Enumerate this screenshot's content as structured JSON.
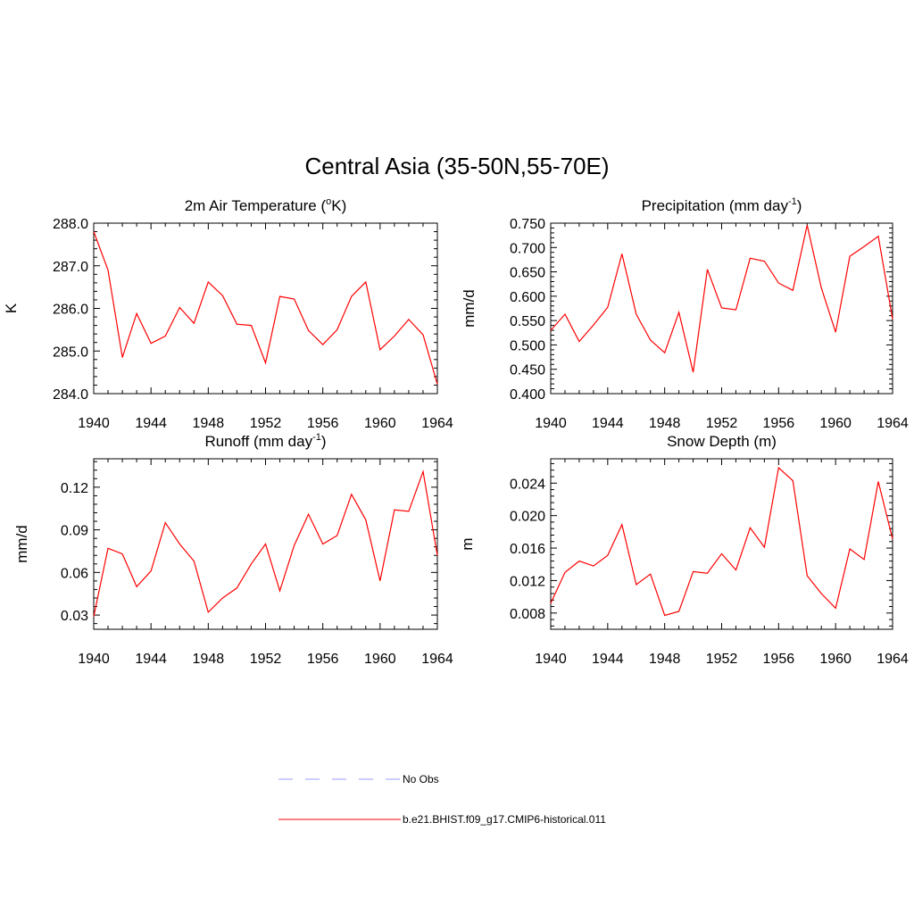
{
  "title": "Central Asia (35-50N,55-70E)",
  "legend": [
    {
      "label": "No Obs",
      "color": "#9999ff",
      "dash": "dashed"
    },
    {
      "label": "b.e21.BHIST.f09_g17.CMIP6-historical.011",
      "color": "#ff0000",
      "dash": "solid"
    }
  ],
  "chart_data": [
    {
      "type": "line",
      "title_main": "2m Air Temperature (",
      "title_sup": "o",
      "title_after": "K)",
      "ylabel": "K",
      "ylim": [
        284.0,
        288.0
      ],
      "yticks": [
        284.0,
        285.0,
        286.0,
        287.0,
        288.0
      ],
      "ytick_labels": [
        "284.0",
        "285.0",
        "286.0",
        "287.0",
        "288.0"
      ],
      "yminor": 0.2,
      "xlim": [
        1940,
        1964
      ],
      "xticks": [
        1940,
        1944,
        1948,
        1952,
        1956,
        1960,
        1964
      ],
      "xtick_labels": [
        "1940",
        "1944",
        "1948",
        "1952",
        "1956",
        "1960",
        "1964"
      ],
      "series": [
        {
          "color": "#ff0000",
          "x": [
            1940,
            1941,
            1942,
            1943,
            1944,
            1945,
            1946,
            1947,
            1948,
            1949,
            1950,
            1951,
            1952,
            1953,
            1954,
            1955,
            1956,
            1957,
            1958,
            1959,
            1960,
            1961,
            1962,
            1963,
            1964
          ],
          "values": [
            287.8,
            286.9,
            284.85,
            285.88,
            285.18,
            285.35,
            286.02,
            285.65,
            286.62,
            286.3,
            285.63,
            285.6,
            284.72,
            286.28,
            286.22,
            285.48,
            285.15,
            285.5,
            286.28,
            286.62,
            285.03,
            285.35,
            285.74,
            285.38,
            284.22
          ]
        }
      ]
    },
    {
      "type": "line",
      "title_main": "Precipitation (mm day",
      "title_sup": "-1",
      "title_after": ")",
      "ylabel": "mm/d",
      "ylim": [
        0.4,
        0.75
      ],
      "yticks": [
        0.4,
        0.45,
        0.5,
        0.55,
        0.6,
        0.65,
        0.7,
        0.75
      ],
      "ytick_labels": [
        "0.400",
        "0.450",
        "0.500",
        "0.550",
        "0.600",
        "0.650",
        "0.700",
        "0.750"
      ],
      "yminor": 0.01,
      "xlim": [
        1940,
        1964
      ],
      "xticks": [
        1940,
        1944,
        1948,
        1952,
        1956,
        1960,
        1964
      ],
      "xtick_labels": [
        "1940",
        "1944",
        "1948",
        "1952",
        "1956",
        "1960",
        "1964"
      ],
      "series": [
        {
          "color": "#ff0000",
          "x": [
            1940,
            1941,
            1942,
            1943,
            1944,
            1945,
            1946,
            1947,
            1948,
            1949,
            1950,
            1951,
            1952,
            1953,
            1954,
            1955,
            1956,
            1957,
            1958,
            1959,
            1960,
            1961,
            1962,
            1963,
            1964
          ],
          "values": [
            0.53,
            0.563,
            0.507,
            0.541,
            0.577,
            0.687,
            0.563,
            0.51,
            0.484,
            0.567,
            0.444,
            0.655,
            0.576,
            0.572,
            0.678,
            0.672,
            0.627,
            0.612,
            0.746,
            0.617,
            0.526,
            0.682,
            0.702,
            0.723,
            0.553
          ]
        }
      ]
    },
    {
      "type": "line",
      "title_main": "Runoff (mm day",
      "title_sup": "-1",
      "title_after": ")",
      "ylabel": "mm/d",
      "ylim": [
        0.02,
        0.14
      ],
      "yticks": [
        0.03,
        0.06,
        0.09,
        0.12
      ],
      "ytick_labels": [
        "0.03",
        "0.06",
        "0.09",
        "0.12"
      ],
      "yminor": 0.006,
      "xlim": [
        1940,
        1964
      ],
      "xticks": [
        1940,
        1944,
        1948,
        1952,
        1956,
        1960,
        1964
      ],
      "xtick_labels": [
        "1940",
        "1944",
        "1948",
        "1952",
        "1956",
        "1960",
        "1964"
      ],
      "series": [
        {
          "color": "#ff0000",
          "x": [
            1940,
            1941,
            1942,
            1943,
            1944,
            1945,
            1946,
            1947,
            1948,
            1949,
            1950,
            1951,
            1952,
            1953,
            1954,
            1955,
            1956,
            1957,
            1958,
            1959,
            1960,
            1961,
            1962,
            1963,
            1964
          ],
          "values": [
            0.029,
            0.077,
            0.073,
            0.05,
            0.061,
            0.095,
            0.08,
            0.068,
            0.032,
            0.042,
            0.049,
            0.066,
            0.08,
            0.047,
            0.079,
            0.101,
            0.08,
            0.086,
            0.115,
            0.097,
            0.054,
            0.104,
            0.103,
            0.131,
            0.072
          ]
        }
      ]
    },
    {
      "type": "line",
      "title_main": "Snow Depth (m)",
      "title_sup": "",
      "title_after": "",
      "ylabel": "m",
      "ylim": [
        0.006,
        0.027
      ],
      "yticks": [
        0.008,
        0.012,
        0.016,
        0.02,
        0.024
      ],
      "ytick_labels": [
        "0.008",
        "0.012",
        "0.016",
        "0.020",
        "0.024"
      ],
      "yminor": 0.0008,
      "xlim": [
        1940,
        1964
      ],
      "xticks": [
        1940,
        1944,
        1948,
        1952,
        1956,
        1960,
        1964
      ],
      "xtick_labels": [
        "1940",
        "1944",
        "1948",
        "1952",
        "1956",
        "1960",
        "1964"
      ],
      "series": [
        {
          "color": "#ff0000",
          "x": [
            1940,
            1941,
            1942,
            1943,
            1944,
            1945,
            1946,
            1947,
            1948,
            1949,
            1950,
            1951,
            1952,
            1953,
            1954,
            1955,
            1956,
            1957,
            1958,
            1959,
            1960,
            1961,
            1962,
            1963,
            1964
          ],
          "values": [
            0.0092,
            0.013,
            0.0144,
            0.0138,
            0.0151,
            0.0189,
            0.0115,
            0.0128,
            0.0077,
            0.0082,
            0.0131,
            0.0129,
            0.0153,
            0.0133,
            0.0185,
            0.0161,
            0.0259,
            0.0243,
            0.0126,
            0.0104,
            0.0086,
            0.0159,
            0.0146,
            0.0242,
            0.0171
          ]
        }
      ]
    }
  ]
}
